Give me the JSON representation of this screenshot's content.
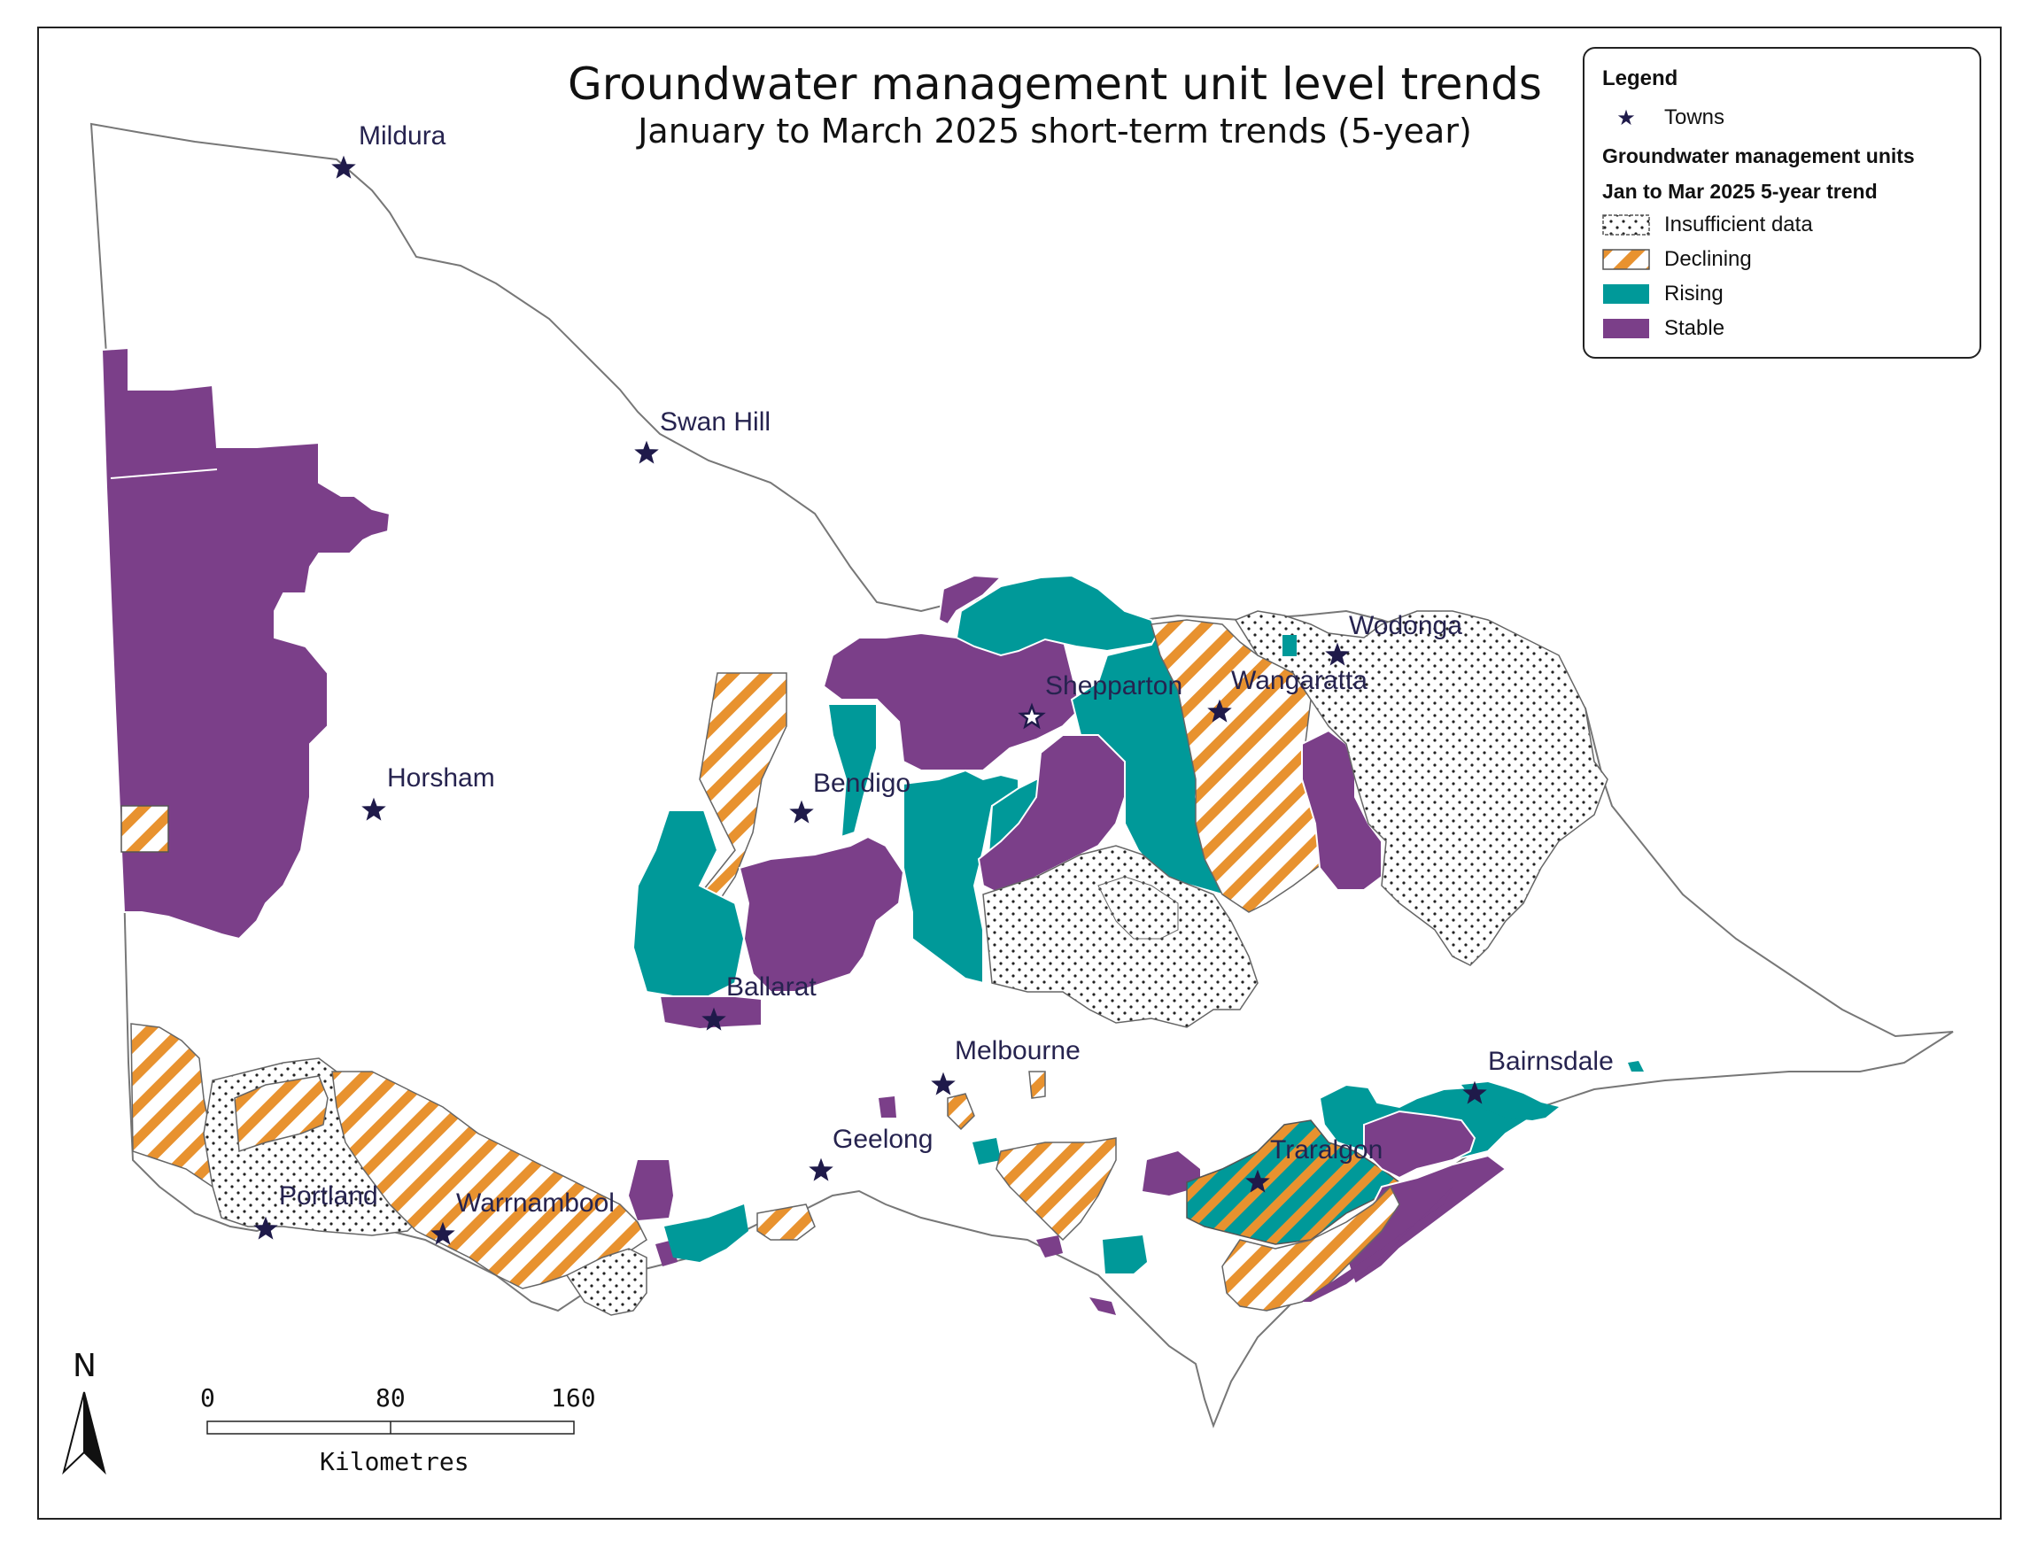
{
  "map": {
    "title": "Groundwater management unit level trends",
    "subtitle": "January to March 2025 short-term trends (5-year)"
  },
  "legend": {
    "title": "Legend",
    "towns_label": "Towns",
    "heading_1": "Groundwater management units",
    "heading_2": "Jan to Mar 2025 5-year trend",
    "items": [
      {
        "label": "Insufficient data",
        "category": "insufficient"
      },
      {
        "label": "Declining",
        "category": "declining"
      },
      {
        "label": "Rising",
        "category": "rising"
      },
      {
        "label": "Stable",
        "category": "stable"
      }
    ]
  },
  "colors": {
    "rising": "#009999",
    "stable": "#7b3f89",
    "declining": "#e8922f",
    "insufficient_dots": "#222222",
    "town_star": "#1f1a4a",
    "boundary": "#777777"
  },
  "towns": [
    {
      "name": "Mildura"
    },
    {
      "name": "Swan Hill"
    },
    {
      "name": "Horsham"
    },
    {
      "name": "Bendigo"
    },
    {
      "name": "Shepparton"
    },
    {
      "name": "Wodonga"
    },
    {
      "name": "Wangaratta"
    },
    {
      "name": "Ballarat"
    },
    {
      "name": "Melbourne"
    },
    {
      "name": "Geelong"
    },
    {
      "name": "Portland"
    },
    {
      "name": "Warrnambool"
    },
    {
      "name": "Traralgon"
    },
    {
      "name": "Bairnsdale"
    }
  ],
  "scale_bar": {
    "ticks": [
      "0",
      "80",
      "160"
    ],
    "unit": "Kilometres"
  },
  "north_arrow": {
    "label": "N"
  }
}
